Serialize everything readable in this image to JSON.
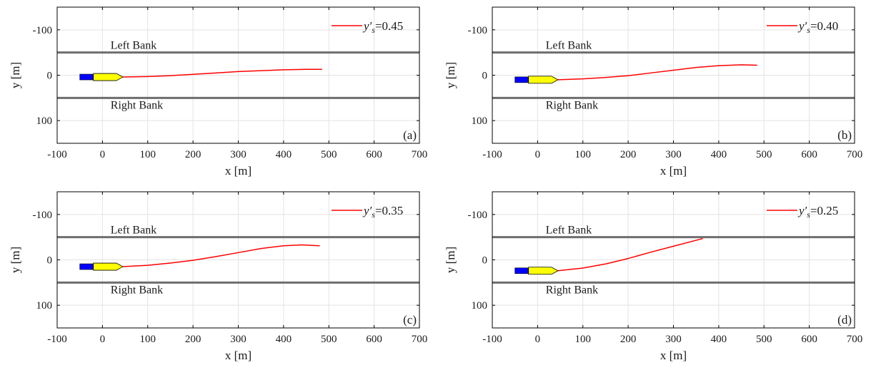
{
  "figure": {
    "panels": [
      {
        "label": "(a)",
        "legend_symbol": "y′s",
        "legend_value": "=0.45"
      },
      {
        "label": "(b)",
        "legend_symbol": "y′s",
        "legend_value": "=0.40"
      },
      {
        "label": "(c)",
        "legend_symbol": "y′s",
        "legend_value": "=0.35"
      },
      {
        "label": "(d)",
        "legend_symbol": "y′s",
        "legend_value": "=0.25"
      }
    ]
  },
  "chart_data": [
    {
      "type": "line",
      "panel": "(a)",
      "xlabel": "x [m]",
      "ylabel": "y [m]",
      "xlim": [
        -100,
        700
      ],
      "ylim": [
        -150,
        150
      ],
      "y_reversed": true,
      "xticks": [
        -100,
        0,
        100,
        200,
        300,
        400,
        500,
        600,
        700
      ],
      "yticks": [
        -100,
        0,
        100
      ],
      "grid": true,
      "legend_position": "top-right",
      "banks": [
        {
          "name": "Left Bank",
          "y": -50
        },
        {
          "name": "Right Bank",
          "y": 50
        }
      ],
      "series": [
        {
          "name": "y's=0.45",
          "color": "#ff0000",
          "x": [
            45,
            100,
            150,
            200,
            250,
            300,
            350,
            400,
            450,
            485
          ],
          "y": [
            4,
            3,
            1,
            -2,
            -5,
            -8,
            -10,
            -12,
            -13,
            -13
          ]
        }
      ],
      "ship": {
        "x_start": -50,
        "x_end": 45,
        "y": 4,
        "hull_color": "#ffff00",
        "stern_color": "#0000ff"
      }
    },
    {
      "type": "line",
      "panel": "(b)",
      "xlabel": "x [m]",
      "ylabel": "y [m]",
      "xlim": [
        -100,
        700
      ],
      "ylim": [
        -150,
        150
      ],
      "y_reversed": true,
      "xticks": [
        -100,
        0,
        100,
        200,
        300,
        400,
        500,
        600,
        700
      ],
      "yticks": [
        -100,
        0,
        100
      ],
      "grid": true,
      "legend_position": "top-right",
      "banks": [
        {
          "name": "Left Bank",
          "y": -50
        },
        {
          "name": "Right Bank",
          "y": 50
        }
      ],
      "series": [
        {
          "name": "y's=0.40",
          "color": "#ff0000",
          "x": [
            45,
            100,
            150,
            200,
            250,
            300,
            350,
            400,
            450,
            485
          ],
          "y": [
            10,
            8,
            5,
            1,
            -5,
            -11,
            -17,
            -21,
            -23,
            -22
          ]
        }
      ],
      "ship": {
        "x_start": -50,
        "x_end": 45,
        "y": 10,
        "hull_color": "#ffff00",
        "stern_color": "#0000ff"
      }
    },
    {
      "type": "line",
      "panel": "(c)",
      "xlabel": "x [m]",
      "ylabel": "y [m]",
      "xlim": [
        -100,
        700
      ],
      "ylim": [
        -150,
        150
      ],
      "y_reversed": true,
      "xticks": [
        -100,
        0,
        100,
        200,
        300,
        400,
        500,
        600,
        700
      ],
      "yticks": [
        -100,
        0,
        100
      ],
      "grid": true,
      "legend_position": "top-right",
      "banks": [
        {
          "name": "Left Bank",
          "y": -50
        },
        {
          "name": "Right Bank",
          "y": 50
        }
      ],
      "series": [
        {
          "name": "y's=0.35",
          "color": "#ff0000",
          "x": [
            45,
            100,
            150,
            200,
            250,
            300,
            350,
            400,
            440,
            480
          ],
          "y": [
            15,
            12,
            7,
            1,
            -7,
            -16,
            -25,
            -31,
            -33,
            -31
          ]
        }
      ],
      "ship": {
        "x_start": -50,
        "x_end": 45,
        "y": 15,
        "hull_color": "#ffff00",
        "stern_color": "#0000ff"
      }
    },
    {
      "type": "line",
      "panel": "(d)",
      "xlabel": "x [m]",
      "ylabel": "y [m]",
      "xlim": [
        -100,
        700
      ],
      "ylim": [
        -150,
        150
      ],
      "y_reversed": true,
      "xticks": [
        -100,
        0,
        100,
        200,
        300,
        400,
        500,
        600,
        700
      ],
      "yticks": [
        -100,
        0,
        100
      ],
      "grid": true,
      "legend_position": "top-right",
      "banks": [
        {
          "name": "Left Bank",
          "y": -50
        },
        {
          "name": "Right Bank",
          "y": 50
        }
      ],
      "series": [
        {
          "name": "y's=0.25",
          "color": "#ff0000",
          "x": [
            45,
            100,
            150,
            200,
            250,
            300,
            365
          ],
          "y": [
            24,
            18,
            9,
            -3,
            -17,
            -30,
            -47
          ]
        }
      ],
      "ship": {
        "x_start": -50,
        "x_end": 45,
        "y": 24,
        "hull_color": "#ffff00",
        "stern_color": "#0000ff"
      }
    }
  ]
}
